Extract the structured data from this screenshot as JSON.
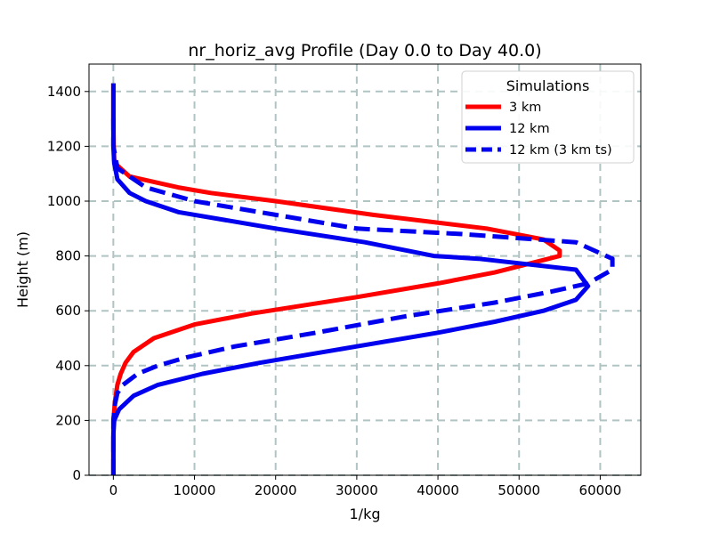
{
  "chart_data": {
    "type": "line",
    "title": "nr_horiz_avg Profile (Day 0.0 to Day 40.0)",
    "xlabel": "1/kg",
    "ylabel": "Height (m)",
    "xlim": [
      -3000,
      65000
    ],
    "ylim": [
      0,
      1500
    ],
    "xticks": [
      0,
      10000,
      20000,
      30000,
      40000,
      50000,
      60000
    ],
    "yticks": [
      0,
      200,
      400,
      600,
      800,
      1000,
      1200,
      1400
    ],
    "grid": true,
    "legend": {
      "title": "Simulations",
      "placement": "top-right"
    },
    "series": [
      {
        "name": "3 km",
        "color": "#ff0000",
        "dash": "solid",
        "points": [
          [
            0,
            0
          ],
          [
            0,
            100
          ],
          [
            20,
            200
          ],
          [
            200,
            270
          ],
          [
            500,
            330
          ],
          [
            900,
            370
          ],
          [
            1500,
            410
          ],
          [
            2500,
            450
          ],
          [
            5000,
            500
          ],
          [
            10000,
            550
          ],
          [
            17000,
            590
          ],
          [
            30000,
            650
          ],
          [
            40000,
            700
          ],
          [
            47000,
            740
          ],
          [
            51000,
            770
          ],
          [
            55000,
            800
          ],
          [
            55000,
            820
          ],
          [
            53000,
            860
          ],
          [
            46000,
            900
          ],
          [
            32000,
            950
          ],
          [
            20000,
            1000
          ],
          [
            12000,
            1030
          ],
          [
            8000,
            1050
          ],
          [
            2000,
            1090
          ],
          [
            500,
            1130
          ],
          [
            100,
            1150
          ],
          [
            50,
            1200
          ],
          [
            0,
            1300
          ],
          [
            0,
            1430
          ]
        ]
      },
      {
        "name": "12 km",
        "color": "#0000ee",
        "dash": "solid",
        "points": [
          [
            0,
            0
          ],
          [
            0,
            150
          ],
          [
            100,
            200
          ],
          [
            700,
            240
          ],
          [
            2500,
            290
          ],
          [
            5500,
            330
          ],
          [
            11000,
            370
          ],
          [
            18000,
            410
          ],
          [
            30000,
            470
          ],
          [
            40000,
            520
          ],
          [
            47000,
            560
          ],
          [
            53000,
            600
          ],
          [
            57000,
            640
          ],
          [
            58500,
            690
          ],
          [
            57000,
            750
          ],
          [
            45000,
            790
          ],
          [
            39500,
            800
          ],
          [
            31000,
            850
          ],
          [
            20000,
            900
          ],
          [
            8000,
            960
          ],
          [
            4000,
            1000
          ],
          [
            2000,
            1030
          ],
          [
            500,
            1080
          ],
          [
            100,
            1140
          ],
          [
            0,
            1200
          ],
          [
            0,
            1300
          ],
          [
            0,
            1430
          ]
        ]
      },
      {
        "name": "12 km (3 km ts)",
        "color": "#0000ee",
        "dash": "dashed",
        "points": [
          [
            0,
            0
          ],
          [
            0,
            200
          ],
          [
            200,
            260
          ],
          [
            500,
            300
          ],
          [
            1200,
            330
          ],
          [
            3000,
            370
          ],
          [
            5500,
            400
          ],
          [
            9000,
            430
          ],
          [
            15000,
            470
          ],
          [
            25000,
            520
          ],
          [
            36000,
            580
          ],
          [
            47000,
            630
          ],
          [
            54000,
            670
          ],
          [
            58500,
            700
          ],
          [
            61500,
            750
          ],
          [
            61500,
            790
          ],
          [
            57000,
            850
          ],
          [
            43000,
            880
          ],
          [
            30000,
            900
          ],
          [
            20000,
            950
          ],
          [
            10000,
            1000
          ],
          [
            4000,
            1050
          ],
          [
            500,
            1120
          ],
          [
            0,
            1200
          ],
          [
            0,
            1300
          ]
        ]
      }
    ]
  }
}
